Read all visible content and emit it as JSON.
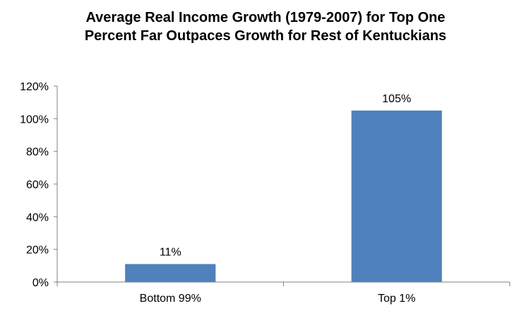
{
  "chart_data": {
    "type": "bar",
    "title_lines": [
      "Average Real Income Growth (1979-2007) for Top One",
      "Percent Far Outpaces Growth for Rest of Kentuckians"
    ],
    "categories": [
      "Bottom 99%",
      "Top 1%"
    ],
    "values": [
      11,
      105
    ],
    "data_labels": [
      "11%",
      "105%"
    ],
    "y_ticks": [
      "0%",
      "20%",
      "40%",
      "60%",
      "80%",
      "100%",
      "120%"
    ],
    "ylim": [
      0,
      120
    ],
    "grid": false,
    "bar_color": "#4f81bd",
    "legend": "none"
  }
}
